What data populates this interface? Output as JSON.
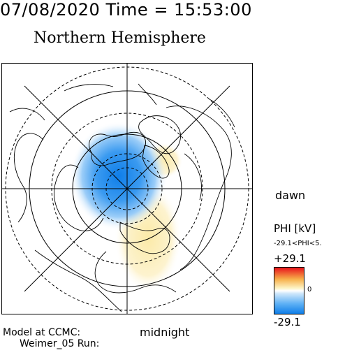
{
  "header": {
    "datetime": "07/08/2020 Time = 15:53:00"
  },
  "title": "Northern Hemisphere",
  "map": {
    "local_time_labels": {
      "right": "dawn",
      "bottom": "midnight"
    },
    "projection": "polar stereographic, north pole centered",
    "latitude_circles": "dashed and solid rings",
    "features": [
      "continent-outlines",
      "potential-contours",
      "meridian-lines"
    ]
  },
  "colorbar": {
    "quantity_label": "PHI [kV]",
    "range_text": "-29.1<PHI<5.",
    "max_label": "+29.1",
    "zero_label": "0",
    "min_label": "-29.1",
    "colors": {
      "positive": "#e8141c",
      "mid_positive": "#f7b04a",
      "zero": "#ffffff",
      "mid_negative": "#5fb1f5",
      "negative": "#0f7ee8"
    }
  },
  "footer": {
    "model_line": "Model at CCMC:",
    "run_line": "Weimer_05 Run:"
  }
}
